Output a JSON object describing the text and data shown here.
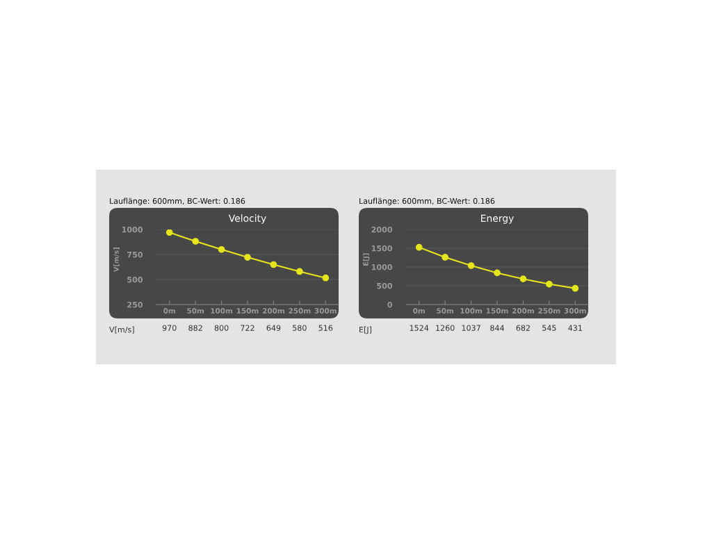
{
  "chart_data": [
    {
      "type": "line",
      "title": "Velocity",
      "subtitle": "Lauflänge: 600mm, BC-Wert: 0.186",
      "ylabel": "V[m/s]",
      "annotations": [
        "V[m/s]"
      ],
      "categories": [
        "0m",
        "50m",
        "100m",
        "150m",
        "200m",
        "250m",
        "300m"
      ],
      "series": [
        {
          "color": "#e5e51c",
          "values": [
            970,
            882,
            800,
            722,
            649,
            580,
            516
          ]
        }
      ],
      "ylim": [
        250,
        1000
      ],
      "yticks": [
        250,
        500,
        750,
        1000
      ],
      "grid": "y",
      "marker": "circle",
      "line_style": "solid",
      "data_labels": true
    },
    {
      "type": "line",
      "title": "Energy",
      "subtitle": "Lauflänge: 600mm, BC-Wert: 0.186",
      "ylabel": "E[J]",
      "annotations": [
        "E[J]"
      ],
      "categories": [
        "0m",
        "50m",
        "100m",
        "150m",
        "200m",
        "250m",
        "300m"
      ],
      "series": [
        {
          "color": "#e5e51c",
          "values": [
            1524,
            1260,
            1037,
            844,
            682,
            545,
            431
          ]
        }
      ],
      "ylim": [
        0,
        2000
      ],
      "yticks": [
        0,
        500,
        1000,
        1500,
        2000
      ],
      "grid": "y",
      "marker": "circle",
      "line_style": "solid",
      "data_labels": true
    }
  ]
}
